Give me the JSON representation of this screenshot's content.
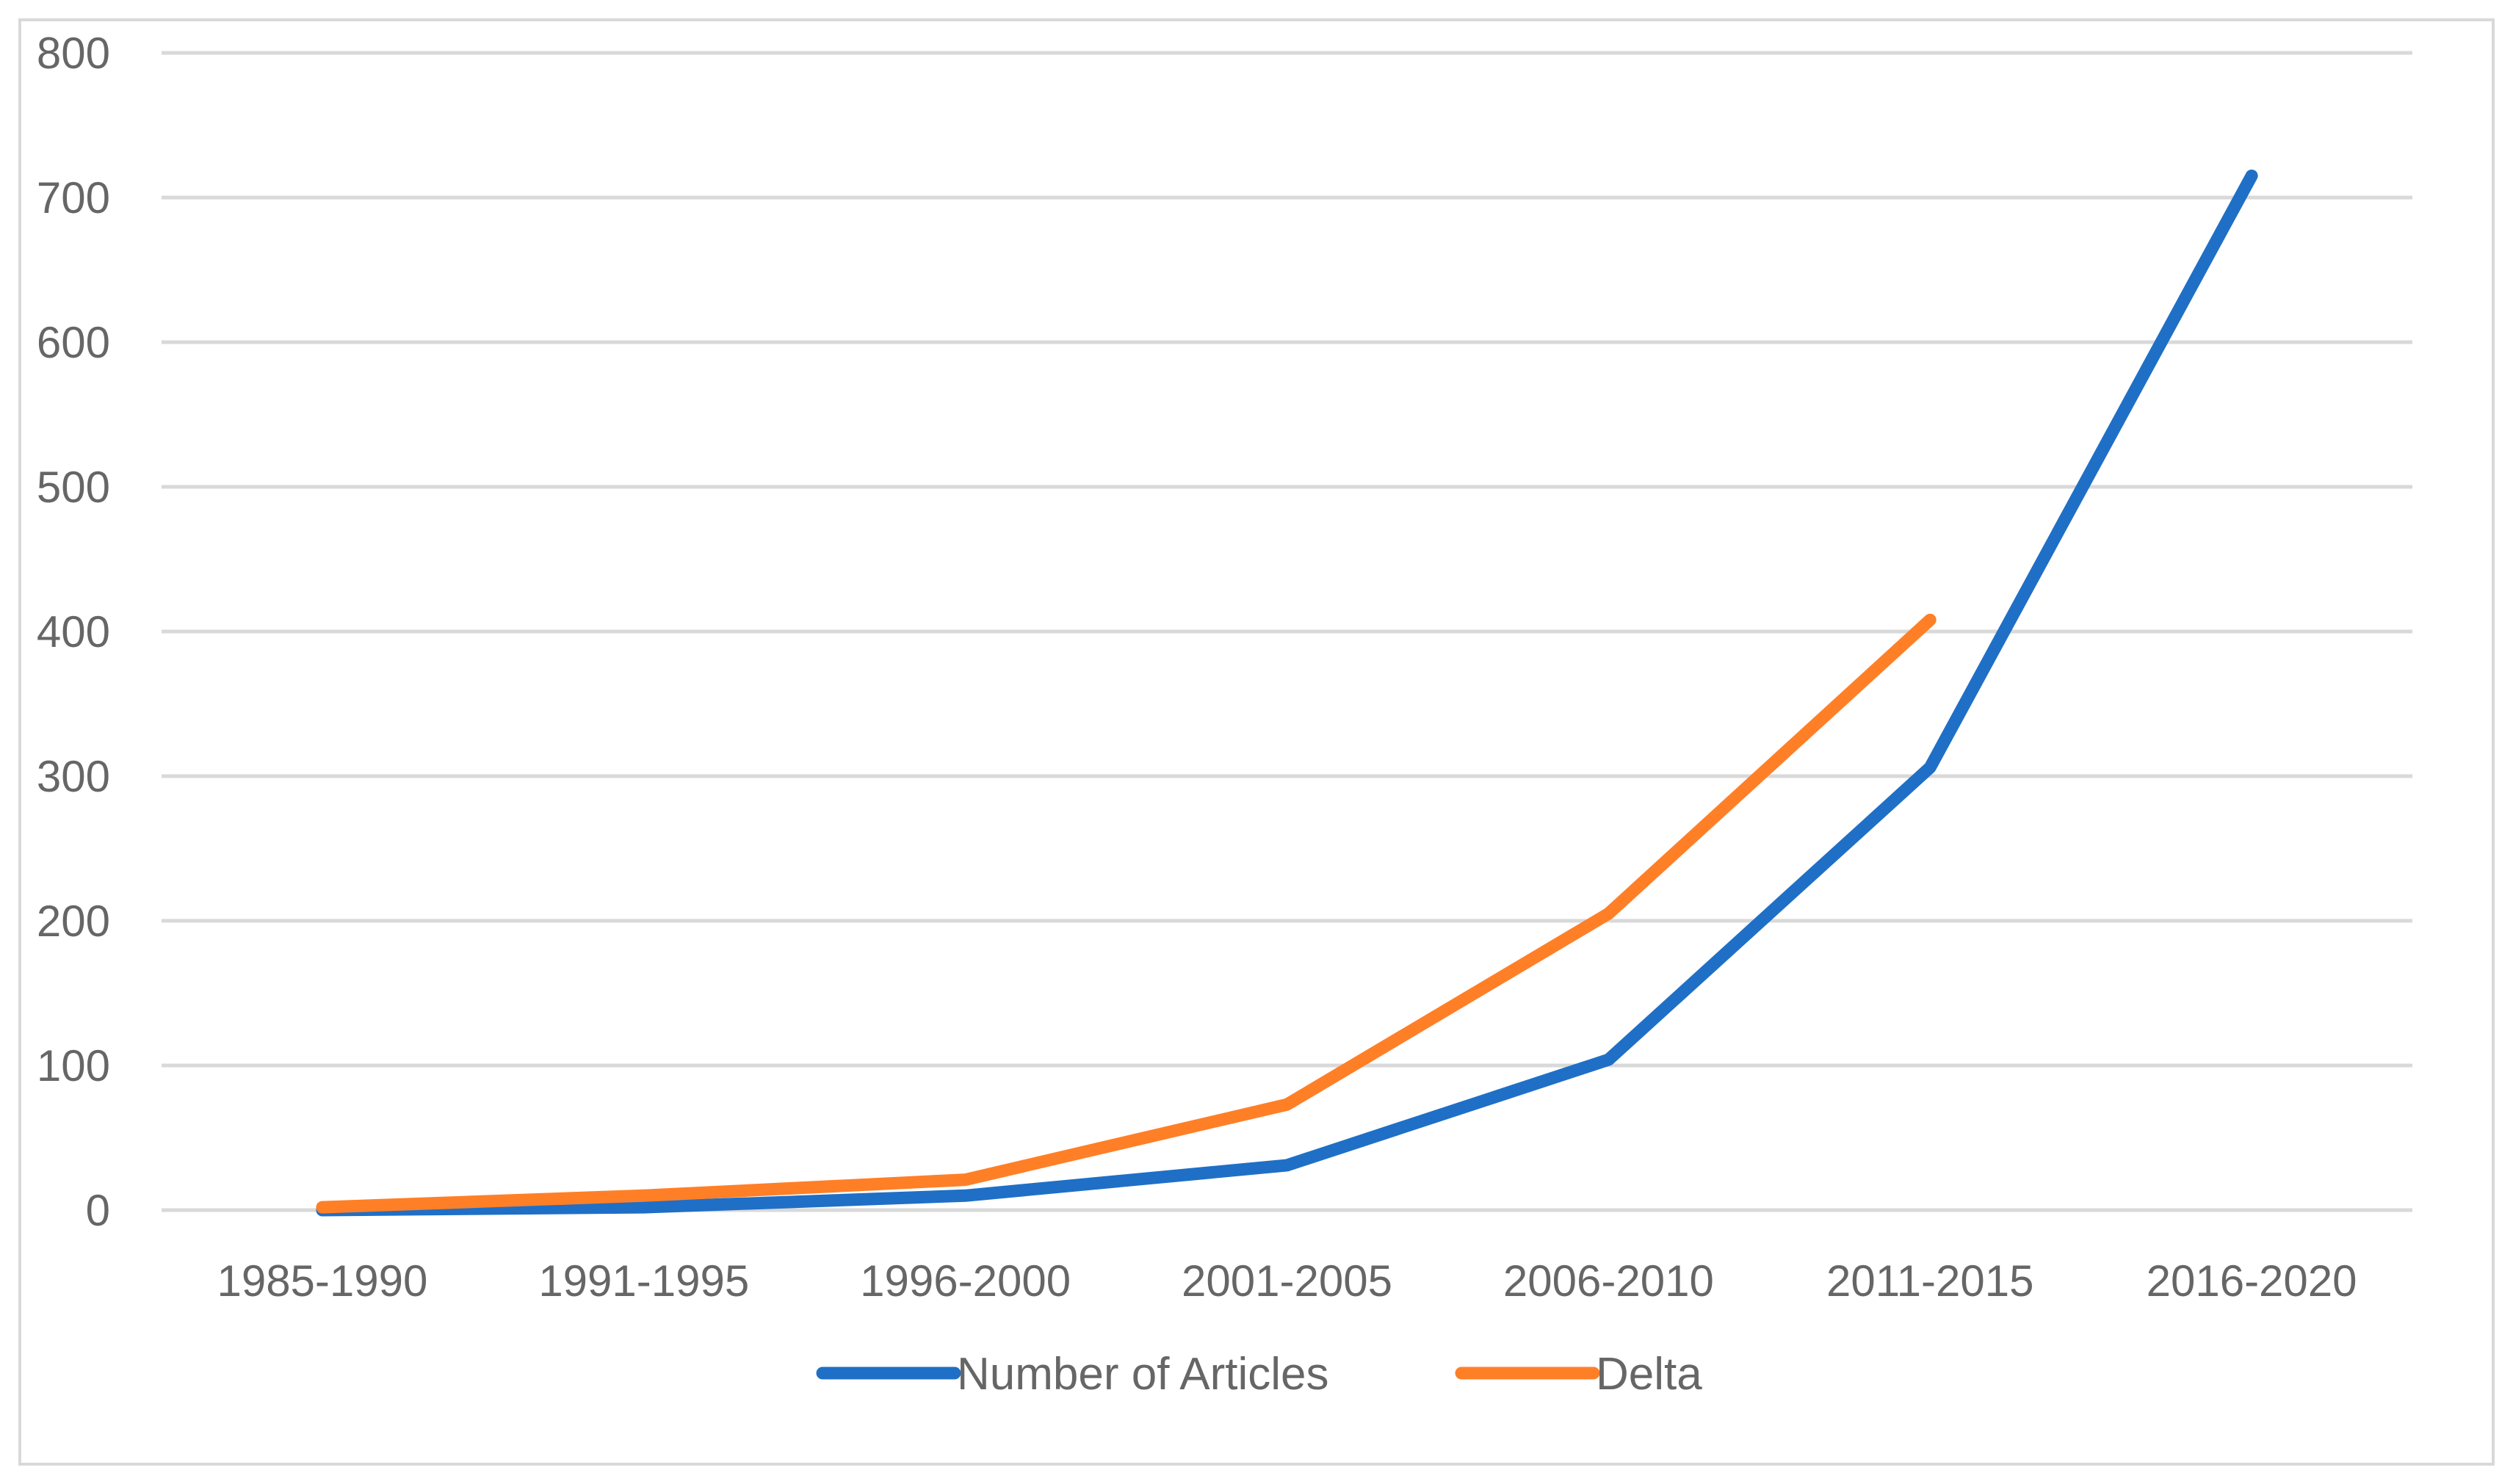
{
  "chart_data": {
    "type": "line",
    "title": "",
    "xlabel": "",
    "ylabel": "",
    "categories": [
      "1985-1990",
      "1991-1995",
      "1996-2000",
      "2001-2005",
      "2006-2010",
      "2011-2015",
      "2016-2020"
    ],
    "yticks": [
      0,
      100,
      200,
      300,
      400,
      500,
      600,
      700,
      800
    ],
    "ylim": [
      0,
      800
    ],
    "grid": true,
    "legend_position": "bottom",
    "series": [
      {
        "name": "Number of Articles",
        "color": "#1f6fc6",
        "values": [
          0,
          2,
          10,
          31,
          104,
          306,
          715
        ]
      },
      {
        "name": "Delta",
        "color": "#ff7f27",
        "values": [
          2,
          10,
          21,
          73,
          205,
          408,
          null
        ]
      }
    ]
  }
}
